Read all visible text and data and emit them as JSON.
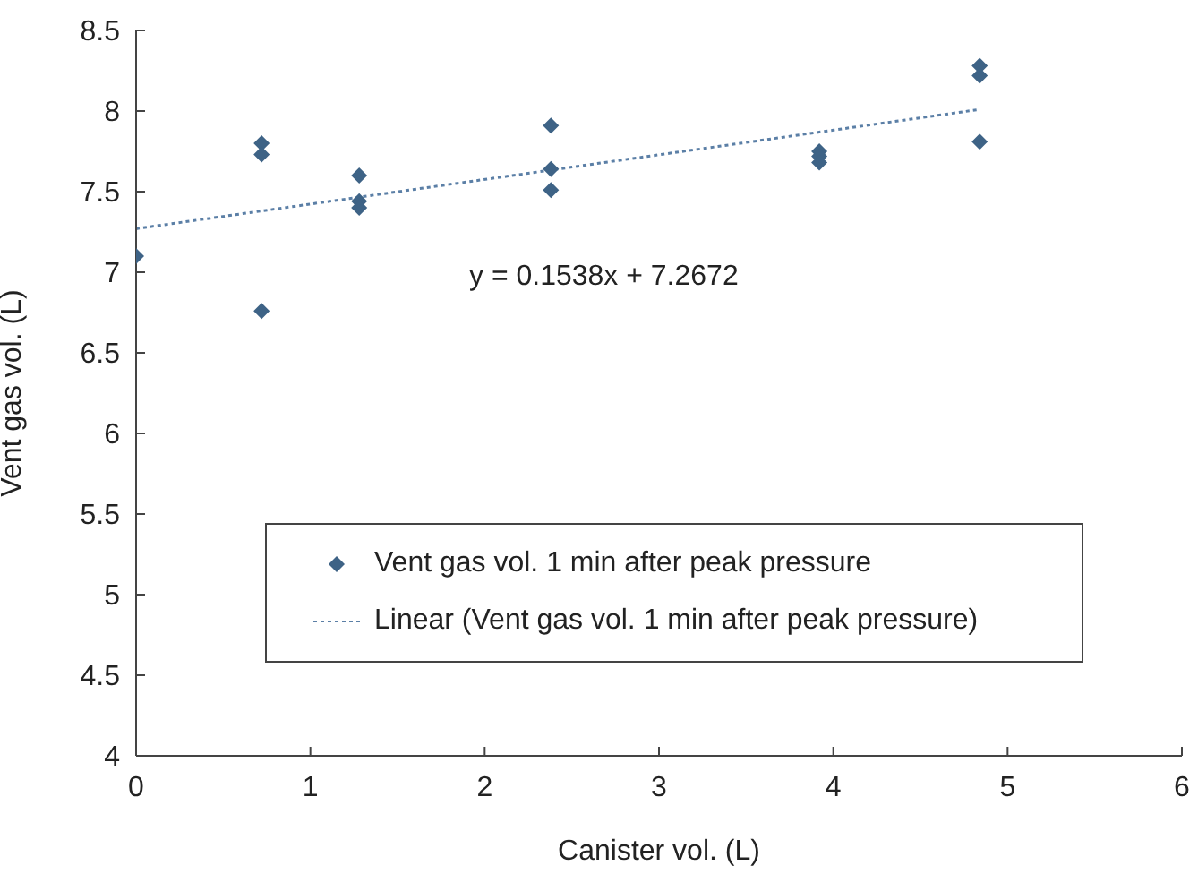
{
  "chart_data": {
    "type": "scatter",
    "xlabel": "Canister vol. (L)",
    "ylabel": "Vent gas vol. (L)",
    "xlim": [
      0,
      6
    ],
    "xticks": [
      0,
      1,
      2,
      3,
      4,
      5,
      6
    ],
    "ylim": [
      4,
      8.5
    ],
    "yticks": [
      4,
      4.5,
      5,
      5.5,
      6,
      6.5,
      7,
      7.5,
      8,
      8.5
    ],
    "legend": "bottom",
    "marker": "diamond",
    "annotations": [
      "y = 0.1538x + 7.2672"
    ],
    "series": [
      {
        "name": "Vent gas vol. 1 min after peak pressure",
        "color": "#3e6386",
        "x": [
          0,
          0.72,
          0.72,
          0.72,
          1.28,
          1.28,
          1.28,
          2.38,
          2.38,
          2.38,
          3.92,
          3.92,
          3.92,
          4.84,
          4.84,
          4.84
        ],
        "values": [
          7.1,
          7.8,
          7.73,
          6.76,
          7.6,
          7.44,
          7.4,
          7.91,
          7.64,
          7.51,
          7.75,
          7.72,
          7.68,
          8.28,
          8.22,
          7.81
        ]
      },
      {
        "name": "Linear (Vent gas vol. 1 min after peak pressure)",
        "type": "line",
        "color": "#5b7fa6",
        "line_style": "dotted",
        "marker": "none",
        "x": [
          0,
          4.84
        ],
        "values": [
          7.27,
          8.01
        ]
      }
    ]
  }
}
